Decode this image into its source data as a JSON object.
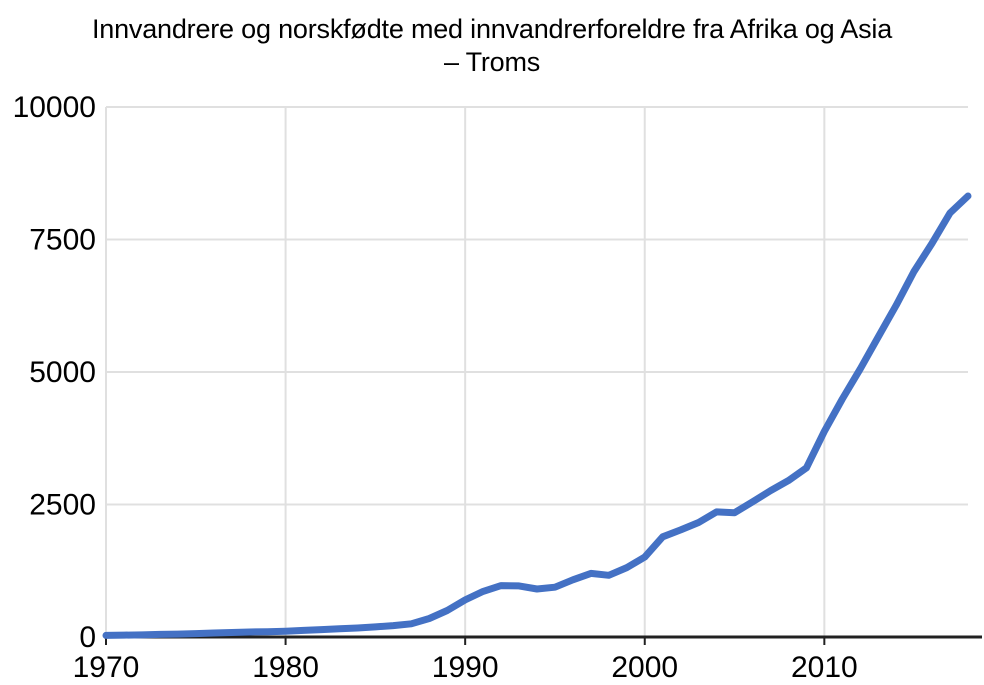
{
  "chart_data": {
    "type": "line",
    "title": "Innvandrere og norskfødte med innvandrerforeldre fra Afrika og Asia – Troms",
    "title_lines": [
      "Innvandrere og norskfødte med innvandrerforeldre fra Afrika og Asia",
      "– Troms"
    ],
    "xlabel": "",
    "ylabel": "",
    "xlim": [
      1970,
      2018
    ],
    "ylim": [
      0,
      10000
    ],
    "x_ticks": [
      1970,
      1980,
      1990,
      2000,
      2010
    ],
    "y_ticks": [
      0,
      2500,
      5000,
      7500,
      10000
    ],
    "grid": true,
    "legend_position": "none",
    "colors": {
      "line": "#4471c4",
      "gridline": "#e0e0e0",
      "axis": "#212121",
      "label_text": "#000000",
      "title_text": "#000000",
      "background": "#ffffff"
    },
    "x": [
      1970,
      1971,
      1972,
      1973,
      1974,
      1975,
      1976,
      1977,
      1978,
      1979,
      1980,
      1981,
      1982,
      1983,
      1984,
      1985,
      1986,
      1987,
      1988,
      1989,
      1990,
      1991,
      1992,
      1993,
      1994,
      1995,
      1996,
      1997,
      1998,
      1999,
      2000,
      2001,
      2002,
      2003,
      2004,
      2005,
      2006,
      2007,
      2008,
      2009,
      2010,
      2011,
      2012,
      2013,
      2014,
      2015,
      2016,
      2017,
      2018
    ],
    "values": [
      30,
      35,
      40,
      50,
      55,
      65,
      75,
      85,
      95,
      100,
      110,
      125,
      140,
      155,
      170,
      190,
      215,
      250,
      350,
      500,
      700,
      860,
      970,
      965,
      905,
      940,
      1080,
      1200,
      1165,
      1310,
      1510,
      1890,
      2020,
      2160,
      2360,
      2345,
      2550,
      2760,
      2950,
      3190,
      3880,
      4490,
      5060,
      5660,
      6260,
      6900,
      7430,
      8000,
      8320
    ]
  }
}
